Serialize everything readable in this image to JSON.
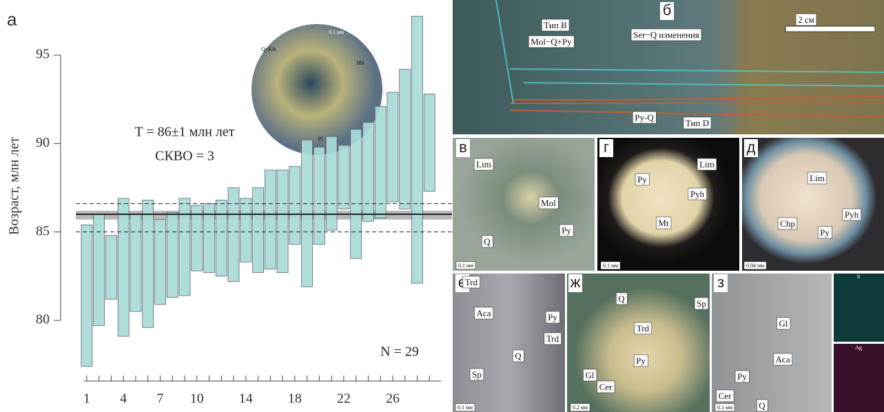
{
  "chart_data": {
    "type": "range-bar",
    "panel_label": "а",
    "y_label": "Возраст, млн лет",
    "ylim": [
      80,
      95
    ],
    "yticks": [
      80,
      85,
      90,
      95
    ],
    "x": [
      1,
      2,
      3,
      4,
      5,
      6,
      7,
      8,
      9,
      10,
      11,
      12,
      13,
      14,
      15,
      16,
      17,
      18,
      19,
      20,
      21,
      22,
      23,
      24,
      25,
      26,
      27,
      28,
      29
    ],
    "xlim": [
      0.5,
      30
    ],
    "xticks": [
      1,
      4,
      7,
      10,
      14,
      18,
      22,
      26
    ],
    "series": [
      {
        "color": "#a9dcd7",
        "low": [
          77.4,
          79.7,
          81.2,
          79.1,
          80.5,
          79.6,
          80.9,
          81.3,
          81.4,
          82.8,
          82.7,
          82.5,
          82.2,
          83.3,
          82.7,
          82.9,
          82.7,
          84.3,
          81.9,
          84.3,
          85.1,
          86.3,
          83.5,
          85.6,
          85.8,
          86.7,
          86.3,
          82.1,
          87.3
        ],
        "high": [
          85.4,
          86.0,
          84.8,
          86.9,
          86.0,
          86.8,
          85.7,
          86.1,
          86.9,
          86.5,
          86.6,
          86.8,
          87.5,
          86.9,
          87.5,
          88.5,
          88.5,
          88.7,
          90.2,
          89.8,
          90.4,
          89.9,
          90.8,
          91.2,
          92.1,
          92.9,
          94.2,
          97.2,
          92.8
        ]
      }
    ],
    "mean": 86,
    "mean_band": [
      85.7,
      86.2
    ],
    "error_lines": [
      85,
      86.6
    ],
    "annotations": [
      "T = 86±1 млн лет",
      "СКВО = 3",
      "N = 29"
    ],
    "inset_labels": [
      "0.1 мм",
      "Q+Kfs",
      "Hbl",
      "Pl"
    ]
  },
  "photos": [
    {
      "letter": "б",
      "labels": [
        "Тип B",
        "Mol−Q+Py",
        "Ser−Q изменения",
        "2 см",
        "Py-Q",
        "Тип D"
      ]
    },
    {
      "letter": "в",
      "labels": [
        "Lim",
        "Mol",
        "Py",
        "Q",
        "0.1 мм"
      ]
    },
    {
      "letter": "г",
      "labels": [
        "Lim",
        "Py",
        "Pyh",
        "Mt",
        "0.1 мм"
      ]
    },
    {
      "letter": "д",
      "labels": [
        "Lim",
        "Chp",
        "Pyh",
        "Py",
        "0.04 мм"
      ]
    },
    {
      "letter": "е",
      "labels": [
        "Trd",
        "Aca",
        "Py",
        "Trd",
        "Q",
        "Sp",
        "0.1 мм"
      ]
    },
    {
      "letter": "ж",
      "labels": [
        "Q",
        "Sp",
        "Trd",
        "Py",
        "Gl",
        "Cer",
        "0.2 мм"
      ]
    },
    {
      "letter": "з",
      "labels": [
        "Gl",
        "Aca",
        "Py",
        "Cer",
        "Q",
        "0.1 мм"
      ]
    },
    {
      "letter": null,
      "labels": [
        "S",
        "Ag"
      ]
    }
  ]
}
